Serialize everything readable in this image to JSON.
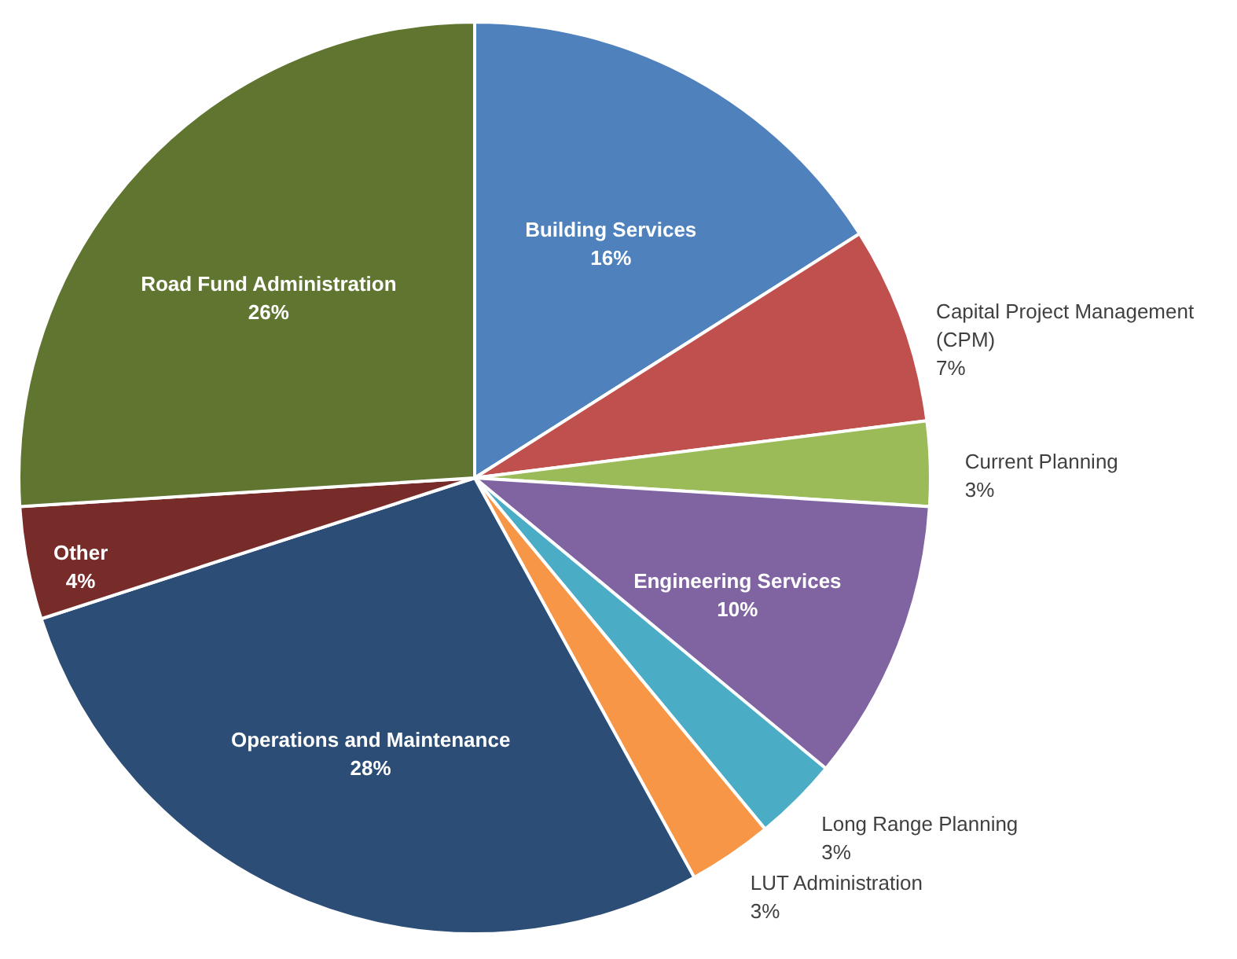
{
  "chart_data": {
    "type": "pie",
    "categories": [
      "Building Services",
      "Capital Project Management (CPM)",
      "Current Planning",
      "Engineering Services",
      "Long Range Planning",
      "LUT Administration",
      "Operations and Maintenance",
      "Other",
      "Road Fund Administration"
    ],
    "values": [
      16,
      7,
      3,
      10,
      3,
      3,
      28,
      4,
      26
    ],
    "value_labels": [
      "16%",
      "7%",
      "3%",
      "10%",
      "3%",
      "3%",
      "28%",
      "4%",
      "26%"
    ],
    "colors": [
      "#4f81bd",
      "#c0504d",
      "#9bbb59",
      "#8064a2",
      "#4bacc6",
      "#f79646",
      "#2c4d75",
      "#772c2a",
      "#5f7530"
    ]
  }
}
